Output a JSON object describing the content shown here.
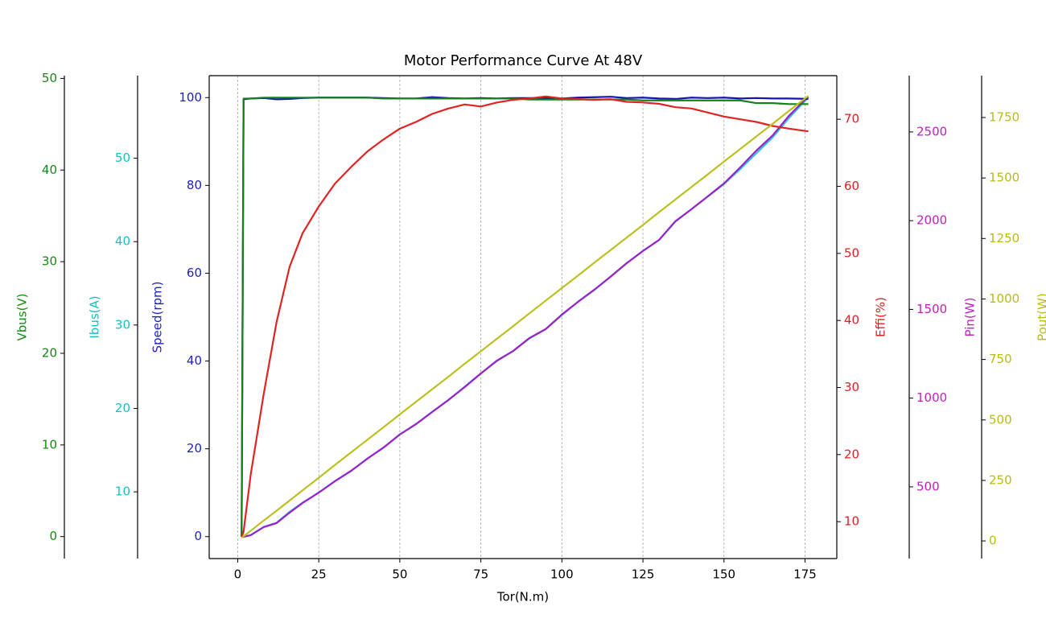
{
  "chart_data": {
    "type": "line",
    "title": "Motor Performance Curve At 48V",
    "xlabel": "Tor(N.m)",
    "x": [
      1.2,
      1.8,
      4,
      8,
      12,
      16,
      20,
      25,
      30,
      35,
      40,
      45,
      50,
      55,
      60,
      65,
      70,
      75,
      80,
      85,
      90,
      95,
      100,
      105,
      110,
      115,
      120,
      125,
      130,
      135,
      140,
      145,
      150,
      155,
      160,
      165,
      170,
      176
    ],
    "xlim": [
      -8.8,
      184.8
    ],
    "xticks": [
      0,
      25,
      50,
      75,
      100,
      125,
      150,
      175
    ],
    "grid": true,
    "axes": [
      {
        "label": "Vbus(V)",
        "color": "#138a13",
        "side": "left",
        "ylim": [
          -2.4,
          50.3
        ],
        "yticks": [
          0,
          10,
          20,
          30,
          40,
          50
        ]
      },
      {
        "label": "Ibus(A)",
        "color": "#17c0c0",
        "side": "left",
        "ylim": [
          2,
          59.9
        ],
        "yticks": [
          10,
          20,
          30,
          40,
          50
        ]
      },
      {
        "label": "Speed(rpm)",
        "color": "#2020c8",
        "side": "left",
        "ylim": [
          -5,
          105
        ],
        "yticks": [
          0,
          20,
          40,
          60,
          80,
          100
        ]
      },
      {
        "label": "Effi(%)",
        "color": "#e02020",
        "side": "right",
        "ylim": [
          4.5,
          76.5
        ],
        "yticks": [
          10,
          20,
          30,
          40,
          50,
          60,
          70
        ]
      },
      {
        "label": "Pin(W)",
        "color": "#c020c0",
        "side": "right",
        "ylim": [
          96,
          2817
        ],
        "yticks": [
          500,
          1000,
          1500,
          2000,
          2500
        ]
      },
      {
        "label": "Pout(W)",
        "color": "#b8bc10",
        "side": "right",
        "ylim": [
          -73,
          1923
        ],
        "yticks": [
          0,
          250,
          500,
          750,
          1000,
          1250,
          1500,
          1750
        ]
      }
    ],
    "series": [
      {
        "axis": 1,
        "color": "#2ec4d8",
        "values": [
          4.6,
          4.6,
          4.8,
          5.8,
          6.3,
          7.6,
          8.7,
          9.9,
          11.3,
          12.5,
          14.0,
          15.3,
          16.9,
          18.1,
          19.6,
          21.0,
          22.6,
          24.2,
          25.7,
          26.9,
          28.4,
          29.5,
          31.2,
          32.8,
          34.2,
          35.8,
          37.4,
          38.9,
          40.2,
          42.4,
          43.9,
          45.4,
          46.9,
          48.7,
          50.6,
          52.5,
          54.8,
          57.3
        ]
      },
      {
        "axis": 4,
        "color": "#9a22c8",
        "values": [
          219,
          219,
          228,
          273,
          296,
          355,
          409,
          468,
          532,
          591,
          659,
          722,
          795,
          854,
          922,
          990,
          1062,
          1139,
          1212,
          1266,
          1339,
          1389,
          1471,
          1543,
          1611,
          1684,
          1761,
          1829,
          1892,
          1997,
          2065,
          2137,
          2210,
          2300,
          2395,
          2480,
          2590,
          2700
        ]
      },
      {
        "axis": 2,
        "color": "#1515b0",
        "values": [
          0,
          99.6,
          99.8,
          99.9,
          99.6,
          99.7,
          99.9,
          100,
          100,
          100,
          100,
          99.9,
          99.8,
          99.8,
          100.1,
          99.9,
          99.8,
          99.9,
          99.8,
          99.9,
          99.9,
          99.9,
          99.8,
          100,
          100.1,
          100.2,
          99.9,
          100,
          99.8,
          99.7,
          100,
          99.9,
          100,
          99.8,
          99.9,
          99.8,
          99.8,
          99.7
        ]
      },
      {
        "axis": 0,
        "color": "#188018",
        "values": [
          0,
          47.8,
          47.8,
          47.9,
          47.9,
          47.9,
          47.9,
          47.9,
          47.9,
          47.9,
          47.9,
          47.8,
          47.8,
          47.8,
          47.8,
          47.8,
          47.8,
          47.8,
          47.8,
          47.8,
          47.7,
          47.7,
          47.7,
          47.7,
          47.7,
          47.7,
          47.7,
          47.6,
          47.6,
          47.6,
          47.6,
          47.6,
          47.6,
          47.6,
          47.3,
          47.3,
          47.2,
          47.2
        ]
      },
      {
        "axis": 3,
        "color": "#e02424",
        "values": [
          7.7,
          8.5,
          17,
          29,
          39.8,
          48,
          53,
          57,
          60.4,
          62.9,
          65.2,
          67,
          68.6,
          69.6,
          70.8,
          71.6,
          72.2,
          71.9,
          72.5,
          72.9,
          73.1,
          73.4,
          73.1,
          73,
          72.9,
          73,
          72.6,
          72.5,
          72.3,
          71.8,
          71.6,
          71,
          70.4,
          70,
          69.6,
          69,
          68.6,
          68.2
        ]
      },
      {
        "axis": 5,
        "color": "#bcc020",
        "values": [
          13,
          19,
          42,
          84,
          125,
          167,
          209,
          261,
          314,
          366,
          418,
          470,
          523,
          575,
          627,
          679,
          732,
          784,
          836,
          888,
          941,
          993,
          1045,
          1097,
          1150,
          1202,
          1254,
          1306,
          1359,
          1411,
          1463,
          1515,
          1568,
          1620,
          1672,
          1724,
          1777,
          1839
        ]
      }
    ]
  }
}
